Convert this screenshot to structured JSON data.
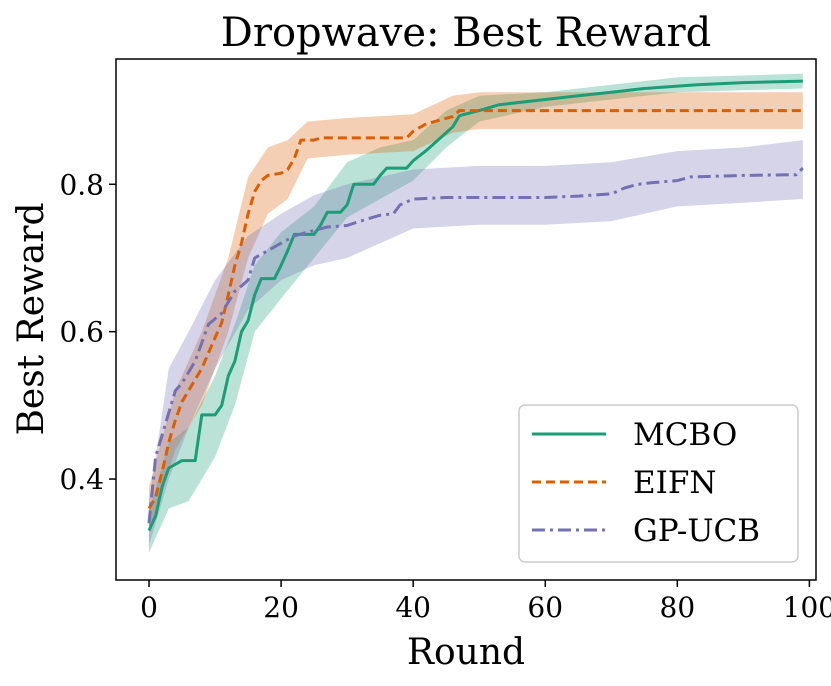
{
  "chart_data": {
    "type": "line",
    "title": "Dropwave: Best Reward",
    "xlabel": "Round",
    "ylabel": "Best Reward",
    "xlim": [
      -5,
      101
    ],
    "ylim": [
      0.263,
      0.97
    ],
    "xticks": [
      0,
      20,
      40,
      60,
      80,
      100
    ],
    "xtick_labels": [
      "0",
      "20",
      "40",
      "60",
      "80",
      "100"
    ],
    "yticks": [
      0.4,
      0.6,
      0.8
    ],
    "ytick_labels": [
      "0.4",
      "0.6",
      "0.8"
    ],
    "grid": false,
    "legend_position": "bottom-right",
    "series": [
      {
        "name": "MCBO",
        "color": "#1b9e77",
        "dash": "solid",
        "points": [
          [
            0,
            0.33
          ],
          [
            1,
            0.35
          ],
          [
            2,
            0.39
          ],
          [
            3,
            0.415
          ],
          [
            4,
            0.42
          ],
          [
            5,
            0.425
          ],
          [
            7,
            0.425
          ],
          [
            8,
            0.487
          ],
          [
            10,
            0.487
          ],
          [
            11,
            0.5
          ],
          [
            12,
            0.54
          ],
          [
            13,
            0.56
          ],
          [
            14,
            0.6
          ],
          [
            15,
            0.615
          ],
          [
            16,
            0.65
          ],
          [
            17,
            0.672
          ],
          [
            19,
            0.672
          ],
          [
            20,
            0.69
          ],
          [
            21,
            0.71
          ],
          [
            22,
            0.732
          ],
          [
            25,
            0.732
          ],
          [
            26,
            0.745
          ],
          [
            27,
            0.762
          ],
          [
            29,
            0.762
          ],
          [
            30,
            0.772
          ],
          [
            31,
            0.8
          ],
          [
            34,
            0.8
          ],
          [
            35,
            0.812
          ],
          [
            36,
            0.822
          ],
          [
            39,
            0.822
          ],
          [
            40,
            0.832
          ],
          [
            42,
            0.846
          ],
          [
            44,
            0.862
          ],
          [
            46,
            0.878
          ],
          [
            47,
            0.893
          ],
          [
            50,
            0.9
          ],
          [
            53,
            0.908
          ],
          [
            60,
            0.915
          ],
          [
            65,
            0.92
          ],
          [
            70,
            0.925
          ],
          [
            75,
            0.93
          ],
          [
            83,
            0.935
          ],
          [
            90,
            0.938
          ],
          [
            99,
            0.94
          ]
        ],
        "band_low": [
          [
            0,
            0.3
          ],
          [
            3,
            0.36
          ],
          [
            6,
            0.37
          ],
          [
            10,
            0.43
          ],
          [
            13,
            0.5
          ],
          [
            16,
            0.6
          ],
          [
            20,
            0.645
          ],
          [
            25,
            0.7
          ],
          [
            30,
            0.755
          ],
          [
            35,
            0.78
          ],
          [
            40,
            0.805
          ],
          [
            45,
            0.85
          ],
          [
            50,
            0.885
          ],
          [
            60,
            0.905
          ],
          [
            70,
            0.915
          ],
          [
            80,
            0.925
          ],
          [
            99,
            0.93
          ]
        ],
        "band_high": [
          [
            0,
            0.355
          ],
          [
            3,
            0.45
          ],
          [
            6,
            0.47
          ],
          [
            10,
            0.54
          ],
          [
            13,
            0.61
          ],
          [
            16,
            0.69
          ],
          [
            20,
            0.735
          ],
          [
            25,
            0.77
          ],
          [
            30,
            0.83
          ],
          [
            35,
            0.85
          ],
          [
            40,
            0.86
          ],
          [
            45,
            0.9
          ],
          [
            50,
            0.92
          ],
          [
            60,
            0.925
          ],
          [
            70,
            0.935
          ],
          [
            80,
            0.945
          ],
          [
            99,
            0.95
          ]
        ]
      },
      {
        "name": "EIFN",
        "color": "#d95f02",
        "dash": "dashed",
        "points": [
          [
            0,
            0.36
          ],
          [
            1,
            0.375
          ],
          [
            2,
            0.41
          ],
          [
            3,
            0.45
          ],
          [
            4,
            0.48
          ],
          [
            5,
            0.505
          ],
          [
            6,
            0.52
          ],
          [
            8,
            0.55
          ],
          [
            10,
            0.592
          ],
          [
            11,
            0.612
          ],
          [
            12,
            0.65
          ],
          [
            13,
            0.69
          ],
          [
            14,
            0.72
          ],
          [
            15,
            0.76
          ],
          [
            16,
            0.79
          ],
          [
            17,
            0.805
          ],
          [
            18,
            0.812
          ],
          [
            20,
            0.815
          ],
          [
            21,
            0.82
          ],
          [
            22,
            0.835
          ],
          [
            23,
            0.86
          ],
          [
            25,
            0.86
          ],
          [
            26,
            0.863
          ],
          [
            39,
            0.863
          ],
          [
            40,
            0.872
          ],
          [
            42,
            0.882
          ],
          [
            46,
            0.892
          ],
          [
            47,
            0.9
          ],
          [
            99,
            0.9
          ]
        ],
        "band_low": [
          [
            0,
            0.33
          ],
          [
            4,
            0.44
          ],
          [
            8,
            0.5
          ],
          [
            12,
            0.6
          ],
          [
            15,
            0.7
          ],
          [
            18,
            0.76
          ],
          [
            21,
            0.78
          ],
          [
            24,
            0.835
          ],
          [
            30,
            0.84
          ],
          [
            40,
            0.845
          ],
          [
            46,
            0.87
          ],
          [
            50,
            0.875
          ],
          [
            99,
            0.875
          ]
        ],
        "band_high": [
          [
            0,
            0.39
          ],
          [
            4,
            0.52
          ],
          [
            8,
            0.6
          ],
          [
            12,
            0.7
          ],
          [
            15,
            0.81
          ],
          [
            18,
            0.85
          ],
          [
            21,
            0.86
          ],
          [
            24,
            0.885
          ],
          [
            30,
            0.89
          ],
          [
            40,
            0.895
          ],
          [
            46,
            0.92
          ],
          [
            50,
            0.925
          ],
          [
            99,
            0.925
          ]
        ]
      },
      {
        "name": "GP-UCB",
        "color": "#7570b3",
        "dash": "dashdot",
        "points": [
          [
            0,
            0.34
          ],
          [
            1,
            0.43
          ],
          [
            2,
            0.46
          ],
          [
            3,
            0.49
          ],
          [
            4,
            0.52
          ],
          [
            5,
            0.53
          ],
          [
            7,
            0.56
          ],
          [
            9,
            0.61
          ],
          [
            11,
            0.625
          ],
          [
            13,
            0.655
          ],
          [
            14,
            0.662
          ],
          [
            15,
            0.67
          ],
          [
            16,
            0.7
          ],
          [
            18,
            0.71
          ],
          [
            20,
            0.72
          ],
          [
            22,
            0.73
          ],
          [
            24,
            0.735
          ],
          [
            27,
            0.742
          ],
          [
            30,
            0.744
          ],
          [
            32,
            0.75
          ],
          [
            35,
            0.758
          ],
          [
            37,
            0.76
          ],
          [
            38,
            0.772
          ],
          [
            40,
            0.78
          ],
          [
            45,
            0.782
          ],
          [
            50,
            0.782
          ],
          [
            60,
            0.782
          ],
          [
            65,
            0.784
          ],
          [
            70,
            0.787
          ],
          [
            72,
            0.795
          ],
          [
            74,
            0.8
          ],
          [
            76,
            0.802
          ],
          [
            80,
            0.805
          ],
          [
            82,
            0.81
          ],
          [
            90,
            0.812
          ],
          [
            98,
            0.813
          ],
          [
            99,
            0.822
          ]
        ],
        "band_low": [
          [
            0,
            0.31
          ],
          [
            3,
            0.4
          ],
          [
            6,
            0.47
          ],
          [
            10,
            0.55
          ],
          [
            15,
            0.63
          ],
          [
            20,
            0.67
          ],
          [
            25,
            0.69
          ],
          [
            30,
            0.7
          ],
          [
            40,
            0.74
          ],
          [
            50,
            0.745
          ],
          [
            60,
            0.745
          ],
          [
            70,
            0.75
          ],
          [
            80,
            0.77
          ],
          [
            90,
            0.775
          ],
          [
            99,
            0.78
          ]
        ],
        "band_high": [
          [
            0,
            0.37
          ],
          [
            3,
            0.55
          ],
          [
            6,
            0.6
          ],
          [
            10,
            0.67
          ],
          [
            15,
            0.73
          ],
          [
            20,
            0.76
          ],
          [
            25,
            0.785
          ],
          [
            30,
            0.8
          ],
          [
            40,
            0.82
          ],
          [
            50,
            0.825
          ],
          [
            60,
            0.825
          ],
          [
            70,
            0.83
          ],
          [
            80,
            0.845
          ],
          [
            90,
            0.85
          ],
          [
            99,
            0.86
          ]
        ]
      }
    ]
  }
}
